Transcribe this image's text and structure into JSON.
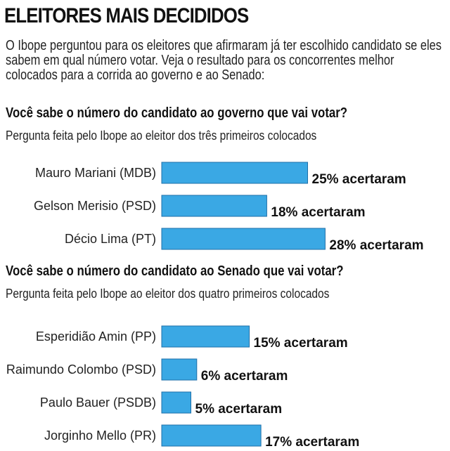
{
  "header": {
    "title": "ELEITORES MAIS DECIDIDOS",
    "intro": "O Ibope perguntou para os eleitores que afirmaram já ter escolhido candidato se eles sabem em qual número votar. Veja o resultado para os concorrentes melhor colocados para a corrida ao governo e ao Senado:"
  },
  "colors": {
    "bar": "#3aa8e4",
    "bar_border": "#1f6fa8"
  },
  "chart_data": [
    {
      "type": "bar",
      "orientation": "horizontal",
      "title": "Você sabe o número do candidato ao governo que vai votar?",
      "subtitle": "Pergunta feita pelo Ibope ao eleitor dos três primeiros colocados",
      "categories": [
        "Mauro Mariani (MDB)",
        "Gelson Merisio (PSD)",
        "Décio Lima (PT)"
      ],
      "values": [
        25,
        18,
        28
      ],
      "value_labels": [
        "25% acertaram",
        "18% acertaram",
        "28% acertaram"
      ],
      "unit": "%",
      "legend": false,
      "grid": false
    },
    {
      "type": "bar",
      "orientation": "horizontal",
      "title": "Você sabe o número do candidato ao Senado que vai votar?",
      "subtitle": "Pergunta feita pelo Ibope ao eleitor dos quatro primeiros colocados",
      "categories": [
        "Esperidião Amin (PP)",
        "Raimundo Colombo (PSD)",
        "Paulo Bauer (PSDB)",
        "Jorginho Mello (PR)"
      ],
      "values": [
        15,
        6,
        5,
        17
      ],
      "value_labels": [
        "15% acertaram",
        "6% acertaram",
        "5% acertaram",
        "17% acertaram"
      ],
      "unit": "%",
      "legend": false,
      "grid": false
    }
  ]
}
